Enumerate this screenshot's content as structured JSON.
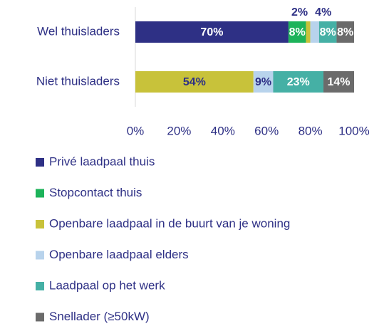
{
  "chart_data": {
    "type": "stacked_bar_horizontal",
    "categories": [
      "Wel thuisladers",
      "Niet thuisladers"
    ],
    "series": [
      {
        "name": "Privé laadpaal thuis",
        "color": "#2e3085",
        "values": [
          70,
          0
        ],
        "value_labels": [
          "70%",
          null
        ]
      },
      {
        "name": "Stopcontact thuis",
        "color": "#1db35a",
        "values": [
          8,
          0
        ],
        "value_labels": [
          "8%",
          null
        ]
      },
      {
        "name": "Openbare laadpaal in de buurt van je woning",
        "color": "#c8c23a",
        "values": [
          2,
          54
        ],
        "value_labels": [
          "2%",
          "54%"
        ]
      },
      {
        "name": "Openbare laadpaal elders",
        "color": "#b8d3ec",
        "values": [
          4,
          9
        ],
        "value_labels": [
          "4%",
          "9%"
        ]
      },
      {
        "name": "Laadpaal op het werk",
        "color": "#45b0a5",
        "values": [
          8,
          23
        ],
        "value_labels": [
          "8%",
          "23%"
        ]
      },
      {
        "name": "Snellader (≥50kW)",
        "color": "#6b6b6b",
        "values": [
          8,
          14
        ],
        "value_labels": [
          "8%",
          "14%"
        ]
      }
    ],
    "xlim": [
      0,
      100
    ],
    "xticks": [
      {
        "value": 0,
        "label": "0%"
      },
      {
        "value": 20,
        "label": "20%"
      },
      {
        "value": 40,
        "label": "40%"
      },
      {
        "value": 60,
        "label": "60%"
      },
      {
        "value": 80,
        "label": "80%"
      },
      {
        "value": 100,
        "label": "100%"
      }
    ],
    "legend": "bottom"
  }
}
